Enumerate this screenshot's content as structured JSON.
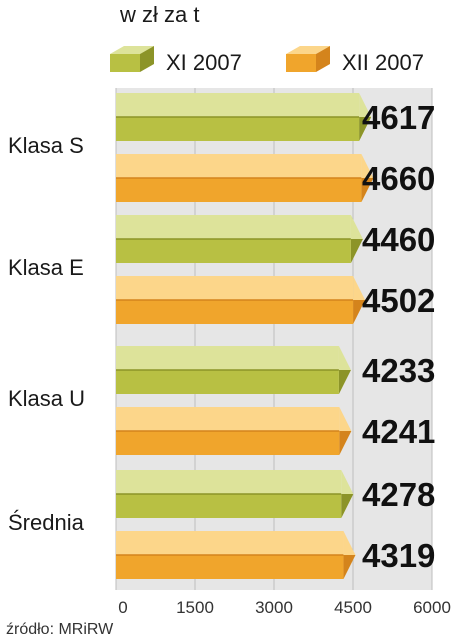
{
  "chart_data": {
    "type": "bar",
    "orientation": "horizontal",
    "unit": "w zł za t",
    "categories": [
      "Klasa S",
      "Klasa E",
      "Klasa U",
      "Średnia"
    ],
    "series": [
      {
        "name": "XI 2007",
        "values": [
          4617,
          4460,
          4233,
          4278
        ],
        "color": "#b8c043",
        "color_light": "#dde39a",
        "color_dark": "#8c9428"
      },
      {
        "name": "XII 2007",
        "values": [
          4660,
          4502,
          4241,
          4319
        ],
        "color": "#f0a52c",
        "color_light": "#fcd68a",
        "color_dark": "#d4841c"
      }
    ],
    "value_labels": [
      [
        "4617",
        "4460",
        "4233",
        "4278"
      ],
      [
        "4660",
        "4502",
        "4241",
        "4319"
      ]
    ],
    "xlim": [
      0,
      6000
    ],
    "xticks": [
      0,
      1500,
      3000,
      4500,
      6000
    ],
    "xtick_labels": [
      "0",
      "1500",
      "3000",
      "4500",
      "6000"
    ],
    "legend_position": "top",
    "grid": true,
    "background_color": "#e6e6e6",
    "source": "źródło: MRiRW"
  }
}
